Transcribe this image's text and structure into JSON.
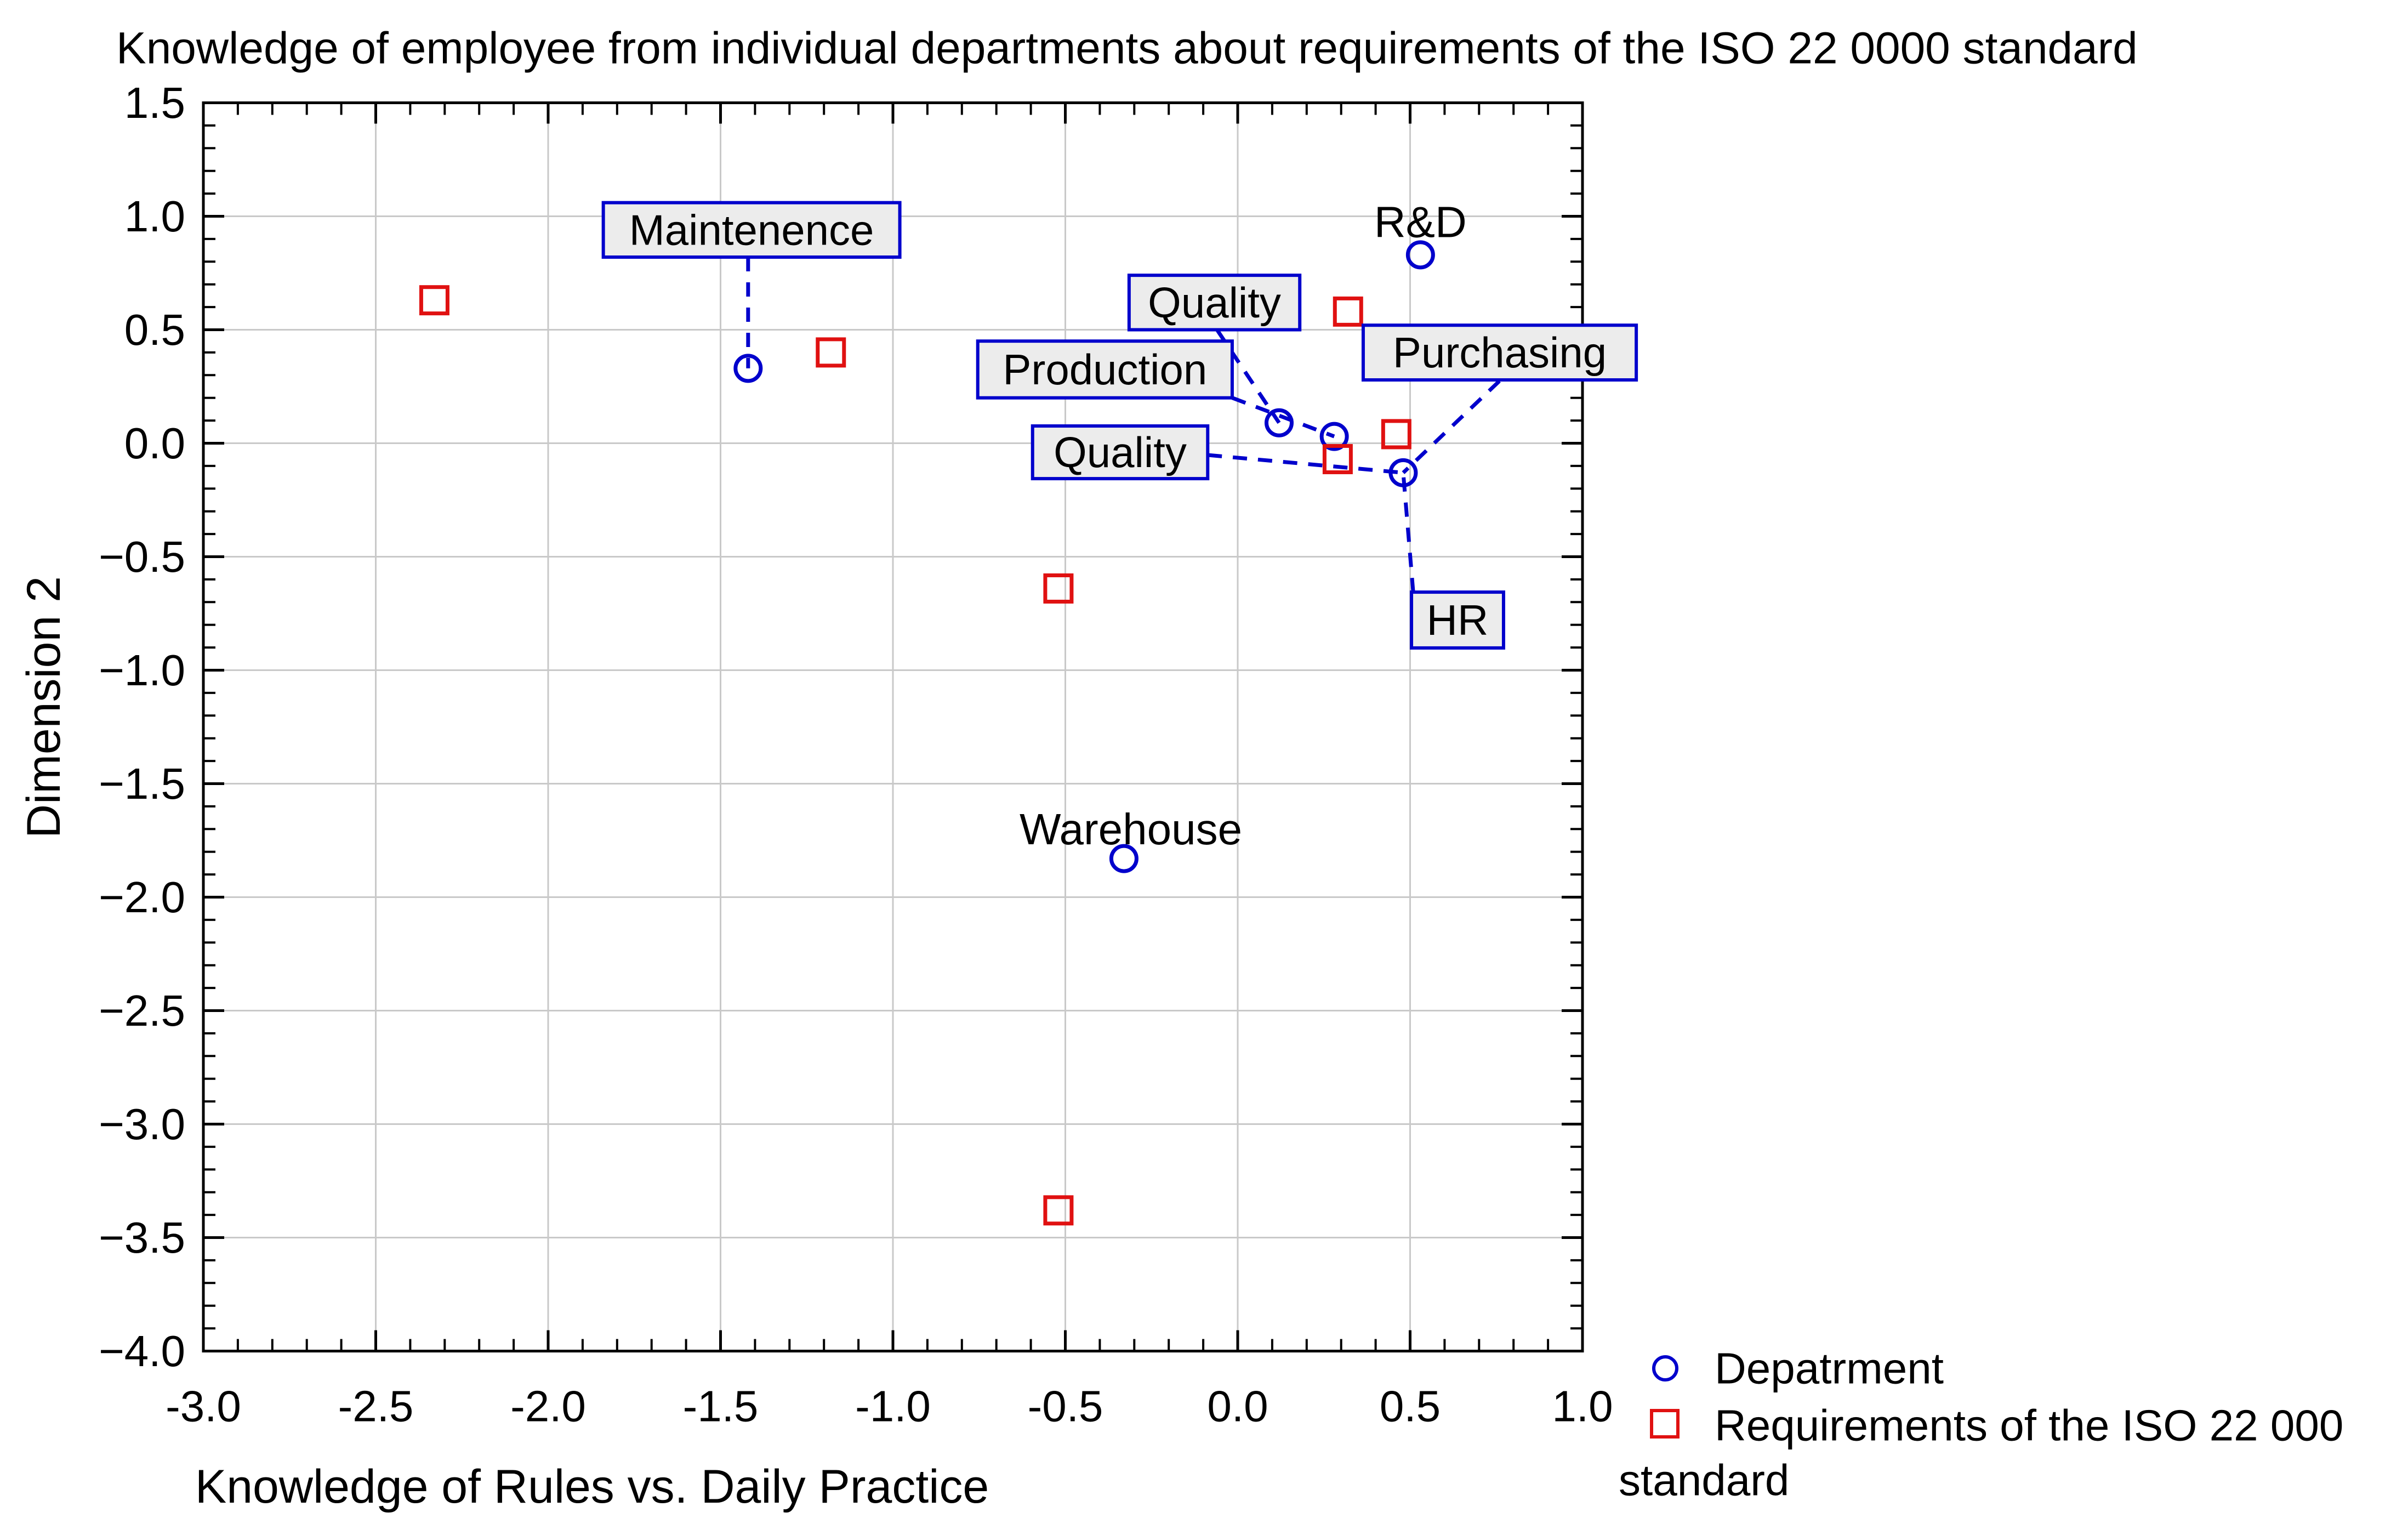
{
  "chart_data": {
    "type": "scatter",
    "title": "Knowledge of employee from individual departments about requirements of the ISO 22 0000 standard",
    "xlabel": "Knowledge of Rules vs. Daily Practice",
    "ylabel": "Dimension 2",
    "xlim": [
      -3.0,
      1.0
    ],
    "ylim": [
      -4.0,
      1.5
    ],
    "x_ticks": [
      -3.0,
      -2.5,
      -2.0,
      -1.5,
      -1.0,
      -0.5,
      0.0,
      0.5,
      1.0
    ],
    "y_ticks": [
      1.5,
      1.0,
      0.5,
      0.0,
      -0.5,
      -1.0,
      -1.5,
      -2.0,
      -2.5,
      -3.0,
      -3.5,
      -4.0
    ],
    "minor_tick_step": 0.1,
    "grid": true,
    "legend_position": "bottom-right",
    "colors": {
      "department": "#0000cc",
      "requirement": "#e01111",
      "gridline": "#c9c9c9",
      "label_box_fill": "#ececec",
      "axis": "#000000"
    },
    "series": [
      {
        "name": "Depatrment",
        "marker": "circle",
        "color": "#0000cc",
        "points": [
          {
            "x": -1.42,
            "y": 0.33,
            "label": "Maintenence"
          },
          {
            "x": 0.53,
            "y": 0.83,
            "label": "R&D"
          },
          {
            "x": 0.12,
            "y": 0.09
          },
          {
            "x": 0.28,
            "y": 0.03
          },
          {
            "x": 0.48,
            "y": -0.13
          },
          {
            "x": -0.33,
            "y": -1.83,
            "label": "Warehouse"
          }
        ]
      },
      {
        "name": "Requirements of the ISO 22 000 standard",
        "marker": "square",
        "color": "#e01111",
        "points": [
          {
            "x": -2.33,
            "y": 0.63
          },
          {
            "x": -1.18,
            "y": 0.4
          },
          {
            "x": 0.32,
            "y": 0.58
          },
          {
            "x": 0.46,
            "y": 0.04
          },
          {
            "x": 0.29,
            "y": -0.07
          },
          {
            "x": -0.52,
            "y": -0.64
          },
          {
            "x": -0.52,
            "y": -3.38
          }
        ]
      }
    ],
    "annotations": {
      "boxed_labels": [
        {
          "text": "Maintenence",
          "x1": -1.84,
          "x2": -0.98,
          "y1": 0.82,
          "y2": 1.06
        },
        {
          "text": "Quality",
          "x1": -0.315,
          "x2": 0.18,
          "y1": 0.5,
          "y2": 0.74
        },
        {
          "text": "Production",
          "x1": -0.754,
          "x2": -0.016,
          "y1": 0.2,
          "y2": 0.45
        },
        {
          "text": "Quality",
          "x1": -0.595,
          "x2": -0.087,
          "y1": -0.156,
          "y2": 0.076
        },
        {
          "text": "Purchasing",
          "x1": 0.364,
          "x2": 1.156,
          "y1": 0.279,
          "y2": 0.52
        },
        {
          "text": "HR",
          "x1": 0.504,
          "x2": 0.771,
          "y1": -0.902,
          "y2": -0.656
        }
      ],
      "plain_labels": [
        {
          "text": "R&D",
          "x": 0.53,
          "y": 0.975
        },
        {
          "text": "Warehouse",
          "x": -0.31,
          "y": -1.7
        }
      ],
      "connectors": [
        {
          "x1": -1.42,
          "y1": 0.82,
          "x2": -1.42,
          "y2": 0.33
        },
        {
          "x1": -0.06,
          "y1": 0.5,
          "x2": 0.12,
          "y2": 0.09
        },
        {
          "x1": -0.016,
          "y1": 0.2,
          "x2": 0.28,
          "y2": 0.03
        },
        {
          "x1": -0.087,
          "y1": -0.052,
          "x2": 0.48,
          "y2": -0.13
        },
        {
          "x1": 0.759,
          "y1": 0.274,
          "x2": 0.48,
          "y2": -0.13
        },
        {
          "x1": 0.509,
          "y1": -0.656,
          "x2": 0.48,
          "y2": -0.13
        }
      ]
    }
  },
  "legend": {
    "items": [
      {
        "marker": "circle",
        "label": "Depatrment"
      },
      {
        "marker": "square",
        "label": "Requirements of the ISO 22 000"
      }
    ],
    "wrap_line": "standard"
  }
}
